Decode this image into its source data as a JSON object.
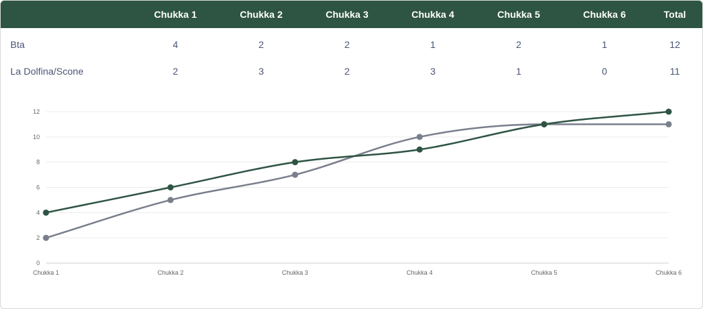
{
  "table": {
    "columns": [
      "",
      "Chukka 1",
      "Chukka 2",
      "Chukka 3",
      "Chukka 4",
      "Chukka 5",
      "Chukka 6",
      "Total"
    ],
    "rows": [
      {
        "team": "Bta",
        "scores": [
          "4",
          "2",
          "2",
          "1",
          "2",
          "1"
        ],
        "total": "12"
      },
      {
        "team": "La Dolfina/Scone",
        "scores": [
          "2",
          "3",
          "2",
          "3",
          "1",
          "0"
        ],
        "total": "11"
      }
    ]
  },
  "colors": {
    "header_bg": "#2e5443",
    "series_1": "#2e5443",
    "series_2": "#7a7f8c",
    "row_text": "#4b5677"
  },
  "chart_data": {
    "type": "line",
    "categories": [
      "Chukka 1",
      "Chukka 2",
      "Chukka 3",
      "Chukka 4",
      "Chukka 5",
      "Chukka 6"
    ],
    "series": [
      {
        "values": [
          4,
          6,
          8,
          9,
          11,
          12
        ]
      },
      {
        "values": [
          2,
          5,
          7,
          10,
          11,
          11
        ]
      }
    ],
    "ylim": [
      0,
      12
    ],
    "yticks": [
      "0",
      "2",
      "4",
      "6",
      "8",
      "10",
      "12"
    ],
    "grid": true,
    "curve": "smooth",
    "legend": "none"
  }
}
